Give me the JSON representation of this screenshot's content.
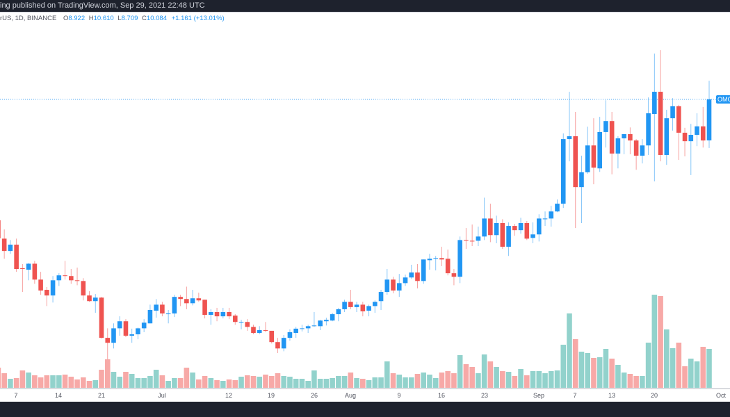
{
  "header": {
    "published": "ing published on TradingView.com, Sep 29, 2021 22:48 UTC",
    "symbol": "rUS, 1D, BINANCE",
    "open_label": "O",
    "open": "8.922",
    "high_label": "H",
    "high": "10.610",
    "low_label": "L",
    "low": "8.709",
    "close_label": "C",
    "close": "10.084",
    "change": "+1.161 (+13.01%)"
  },
  "price_label": "OMG",
  "colors": {
    "up": "#2196f3",
    "down": "#ef5350",
    "volume_up": "#92d2cc",
    "volume_down": "#f7a9a7",
    "background": "#ffffff",
    "frame": "#1e222d"
  },
  "chart_data": {
    "type": "candlestick",
    "interval": "1D",
    "exchange": "BINANCE",
    "x_ticks": [
      "7",
      "14",
      "21",
      "Jul",
      "12",
      "19",
      "26",
      "Aug",
      "9",
      "16",
      "23",
      "Sep",
      "7",
      "13",
      "20",
      "Oct"
    ],
    "last_price": 10.084,
    "columns": [
      "date",
      "open",
      "high",
      "low",
      "close",
      "volume_relative"
    ],
    "candles": [
      [
        "2021-06-04",
        6.66,
        6.72,
        6.01,
        6.15,
        29
      ],
      [
        "2021-06-05",
        6.14,
        6.4,
        5.57,
        5.79,
        21
      ],
      [
        "2021-06-06",
        5.79,
        6.1,
        5.71,
        5.97,
        13
      ],
      [
        "2021-06-07",
        5.97,
        6.14,
        5.2,
        5.28,
        14
      ],
      [
        "2021-06-08",
        5.3,
        5.42,
        4.63,
        5.28,
        25
      ],
      [
        "2021-06-09",
        5.26,
        5.45,
        4.96,
        5.43,
        22
      ],
      [
        "2021-06-10",
        5.43,
        5.51,
        4.86,
        4.98,
        18
      ],
      [
        "2021-06-11",
        4.98,
        5.2,
        4.55,
        4.67,
        15
      ],
      [
        "2021-06-12",
        4.69,
        4.77,
        4.23,
        4.53,
        18
      ],
      [
        "2021-06-13",
        4.53,
        5.08,
        4.33,
        4.96,
        18
      ],
      [
        "2021-06-14",
        4.96,
        5.16,
        4.8,
        5.1,
        18
      ],
      [
        "2021-06-15",
        5.1,
        5.51,
        4.98,
        5.08,
        19
      ],
      [
        "2021-06-16",
        5.08,
        5.28,
        4.86,
        4.96,
        16
      ],
      [
        "2021-06-17",
        4.96,
        5.32,
        4.82,
        4.94,
        12
      ],
      [
        "2021-06-18",
        4.94,
        5.02,
        4.39,
        4.53,
        15
      ],
      [
        "2021-06-19",
        4.53,
        4.65,
        4.35,
        4.37,
        10
      ],
      [
        "2021-06-20",
        4.37,
        4.57,
        4.04,
        4.47,
        11
      ],
      [
        "2021-06-21",
        4.47,
        4.49,
        3.31,
        3.33,
        26
      ],
      [
        "2021-06-22",
        3.33,
        3.6,
        2.72,
        3.19,
        41
      ],
      [
        "2021-06-23",
        3.19,
        3.74,
        3.03,
        3.6,
        23
      ],
      [
        "2021-06-24",
        3.6,
        3.94,
        3.39,
        3.8,
        16
      ],
      [
        "2021-06-25",
        3.8,
        3.86,
        3.35,
        3.39,
        23
      ],
      [
        "2021-06-26",
        3.39,
        3.59,
        3.19,
        3.43,
        20
      ],
      [
        "2021-06-27",
        3.43,
        3.62,
        3.29,
        3.6,
        14
      ],
      [
        "2021-06-28",
        3.6,
        3.86,
        3.49,
        3.76,
        14
      ],
      [
        "2021-06-29",
        3.74,
        4.27,
        3.74,
        4.12,
        17
      ],
      [
        "2021-06-30",
        4.1,
        4.43,
        3.9,
        4.27,
        26
      ],
      [
        "2021-07-01",
        4.27,
        4.35,
        3.94,
        4.02,
        18
      ],
      [
        "2021-07-02",
        4.0,
        4.12,
        3.74,
        4.02,
        10
      ],
      [
        "2021-07-03",
        4.02,
        4.55,
        3.92,
        4.49,
        14
      ],
      [
        "2021-07-04",
        4.49,
        4.55,
        4.23,
        4.43,
        14
      ],
      [
        "2021-07-05",
        4.43,
        4.78,
        4.14,
        4.31,
        29
      ],
      [
        "2021-07-06",
        4.31,
        4.69,
        4.25,
        4.45,
        22
      ],
      [
        "2021-07-07",
        4.45,
        4.61,
        4.35,
        4.39,
        12
      ],
      [
        "2021-07-08",
        4.41,
        4.41,
        3.88,
        3.98,
        17
      ],
      [
        "2021-07-09",
        3.98,
        4.14,
        3.7,
        4.06,
        14
      ],
      [
        "2021-07-10",
        4.06,
        4.18,
        3.8,
        3.94,
        11
      ],
      [
        "2021-07-11",
        3.94,
        4.18,
        3.88,
        4.06,
        10
      ],
      [
        "2021-07-12",
        4.06,
        4.18,
        3.86,
        3.94,
        12
      ],
      [
        "2021-07-13",
        3.96,
        4.0,
        3.7,
        3.78,
        11
      ],
      [
        "2021-07-14",
        3.76,
        3.84,
        3.57,
        3.78,
        16
      ],
      [
        "2021-07-15",
        3.78,
        3.86,
        3.53,
        3.64,
        18
      ],
      [
        "2021-07-16",
        3.64,
        3.7,
        3.43,
        3.47,
        17
      ],
      [
        "2021-07-17",
        3.47,
        3.66,
        3.43,
        3.55,
        16
      ],
      [
        "2021-07-18",
        3.55,
        3.78,
        3.49,
        3.53,
        19
      ],
      [
        "2021-07-19",
        3.53,
        3.53,
        3.17,
        3.21,
        17
      ],
      [
        "2021-07-20",
        3.21,
        3.33,
        2.9,
        3.03,
        21
      ],
      [
        "2021-07-21",
        3.03,
        3.41,
        2.95,
        3.33,
        17
      ],
      [
        "2021-07-22",
        3.33,
        3.57,
        3.25,
        3.49,
        16
      ],
      [
        "2021-07-23",
        3.47,
        3.64,
        3.33,
        3.59,
        13
      ],
      [
        "2021-07-24",
        3.59,
        3.7,
        3.51,
        3.6,
        13
      ],
      [
        "2021-07-25",
        3.6,
        3.7,
        3.47,
        3.66,
        10
      ],
      [
        "2021-07-26",
        3.66,
        4.06,
        3.64,
        3.68,
        25
      ],
      [
        "2021-07-27",
        3.66,
        3.84,
        3.55,
        3.82,
        13
      ],
      [
        "2021-07-28",
        3.8,
        3.9,
        3.68,
        3.84,
        13
      ],
      [
        "2021-07-29",
        3.82,
        4.04,
        3.8,
        4.0,
        14
      ],
      [
        "2021-07-30",
        4.0,
        4.18,
        3.8,
        4.14,
        17
      ],
      [
        "2021-07-31",
        4.14,
        4.41,
        4.06,
        4.35,
        17
      ],
      [
        "2021-08-01",
        4.35,
        4.69,
        4.14,
        4.2,
        22
      ],
      [
        "2021-08-02",
        4.2,
        4.35,
        4.06,
        4.27,
        14
      ],
      [
        "2021-08-03",
        4.27,
        4.35,
        3.94,
        4.08,
        13
      ],
      [
        "2021-08-04",
        4.1,
        4.27,
        3.94,
        4.23,
        11
      ],
      [
        "2021-08-05",
        4.23,
        4.39,
        4.04,
        4.35,
        15
      ],
      [
        "2021-08-06",
        4.37,
        4.69,
        4.12,
        4.63,
        15
      ],
      [
        "2021-08-07",
        4.63,
        5.28,
        4.55,
        4.98,
        38
      ],
      [
        "2021-08-08",
        4.98,
        5.06,
        4.59,
        4.67,
        21
      ],
      [
        "2021-08-09",
        4.67,
        5.14,
        4.49,
        4.88,
        19
      ],
      [
        "2021-08-10",
        4.88,
        5.12,
        4.8,
        5.04,
        15
      ],
      [
        "2021-08-11",
        5.04,
        5.4,
        5.0,
        5.18,
        15
      ],
      [
        "2021-08-12",
        5.18,
        5.42,
        4.73,
        4.94,
        20
      ],
      [
        "2021-08-13",
        4.94,
        5.55,
        4.86,
        5.55,
        22
      ],
      [
        "2021-08-14",
        5.53,
        5.71,
        5.26,
        5.57,
        19
      ],
      [
        "2021-08-15",
        5.57,
        5.65,
        5.24,
        5.59,
        14
      ],
      [
        "2021-08-16",
        5.59,
        5.91,
        5.36,
        5.55,
        22
      ],
      [
        "2021-08-17",
        5.57,
        5.83,
        5.1,
        5.16,
        24
      ],
      [
        "2021-08-18",
        5.16,
        5.28,
        4.82,
        5.06,
        21
      ],
      [
        "2021-08-19",
        5.06,
        6.2,
        4.88,
        6.1,
        47
      ],
      [
        "2021-08-20",
        6.1,
        6.44,
        5.85,
        6.08,
        34
      ],
      [
        "2021-08-21",
        6.08,
        6.54,
        5.93,
        6.06,
        30
      ],
      [
        "2021-08-22",
        6.08,
        6.48,
        5.93,
        6.2,
        21
      ],
      [
        "2021-08-23",
        6.2,
        7.3,
        6.1,
        6.71,
        48
      ],
      [
        "2021-08-24",
        6.71,
        7.13,
        6.04,
        6.24,
        38
      ],
      [
        "2021-08-25",
        6.24,
        6.79,
        6.01,
        6.58,
        30
      ],
      [
        "2021-08-26",
        6.58,
        6.69,
        5.85,
        5.91,
        24
      ],
      [
        "2021-08-27",
        5.91,
        6.6,
        5.65,
        6.5,
        23
      ],
      [
        "2021-08-28",
        6.5,
        6.56,
        6.22,
        6.38,
        17
      ],
      [
        "2021-08-29",
        6.38,
        6.73,
        6.28,
        6.58,
        27
      ],
      [
        "2021-08-30",
        6.58,
        6.64,
        6.1,
        6.14,
        18
      ],
      [
        "2021-08-31",
        6.16,
        6.6,
        6.01,
        6.26,
        24
      ],
      [
        "2021-09-01",
        6.26,
        6.83,
        6.06,
        6.71,
        24
      ],
      [
        "2021-09-02",
        6.69,
        6.91,
        6.5,
        6.71,
        21
      ],
      [
        "2021-09-03",
        6.71,
        7.07,
        6.48,
        6.91,
        24
      ],
      [
        "2021-09-04",
        6.91,
        7.25,
        6.89,
        7.13,
        25
      ],
      [
        "2021-09-05",
        7.13,
        9.12,
        7.01,
        8.96,
        62
      ],
      [
        "2021-09-06",
        8.96,
        10.3,
        8.33,
        9.04,
        107
      ],
      [
        "2021-09-07",
        9.04,
        9.73,
        6.44,
        7.6,
        70
      ],
      [
        "2021-09-08",
        7.6,
        8.49,
        6.58,
        8.02,
        52
      ],
      [
        "2021-09-09",
        8.02,
        9.31,
        7.98,
        8.78,
        50
      ],
      [
        "2021-09-10",
        8.78,
        9.55,
        7.68,
        8.15,
        43
      ],
      [
        "2021-09-11",
        8.13,
        9.59,
        8.03,
        9.16,
        44
      ],
      [
        "2021-09-12",
        9.16,
        10.06,
        8.72,
        9.47,
        56
      ],
      [
        "2021-09-13",
        9.47,
        9.73,
        7.96,
        8.55,
        42
      ],
      [
        "2021-09-14",
        8.55,
        9.04,
        8.13,
        8.98,
        33
      ],
      [
        "2021-09-15",
        8.98,
        9.1,
        8.53,
        9.1,
        22
      ],
      [
        "2021-09-16",
        9.1,
        9.29,
        8.53,
        8.92,
        20
      ],
      [
        "2021-09-17",
        8.92,
        8.96,
        8.09,
        8.49,
        17
      ],
      [
        "2021-09-18",
        8.49,
        8.96,
        8.27,
        8.78,
        17
      ],
      [
        "2021-09-19",
        8.78,
        10.14,
        8.51,
        9.69,
        65
      ],
      [
        "2021-09-20",
        9.67,
        11.38,
        7.76,
        10.3,
        134
      ],
      [
        "2021-09-21",
        10.3,
        11.48,
        8.33,
        8.51,
        132
      ],
      [
        "2021-09-22",
        8.51,
        9.79,
        8.23,
        9.55,
        84
      ],
      [
        "2021-09-23",
        9.55,
        10.12,
        9.2,
        9.89,
        57
      ],
      [
        "2021-09-24",
        9.89,
        9.93,
        8.37,
        9.14,
        65
      ],
      [
        "2021-09-25",
        9.14,
        9.28,
        8.47,
        8.9,
        31
      ],
      [
        "2021-09-26",
        8.9,
        9.39,
        7.94,
        9.08,
        42
      ],
      [
        "2021-09-27",
        9.08,
        9.69,
        8.76,
        9.32,
        38
      ],
      [
        "2021-09-28",
        9.32,
        9.87,
        8.72,
        8.92,
        59
      ],
      [
        "2021-09-29",
        8.922,
        10.61,
        8.709,
        10.084,
        56
      ]
    ]
  }
}
